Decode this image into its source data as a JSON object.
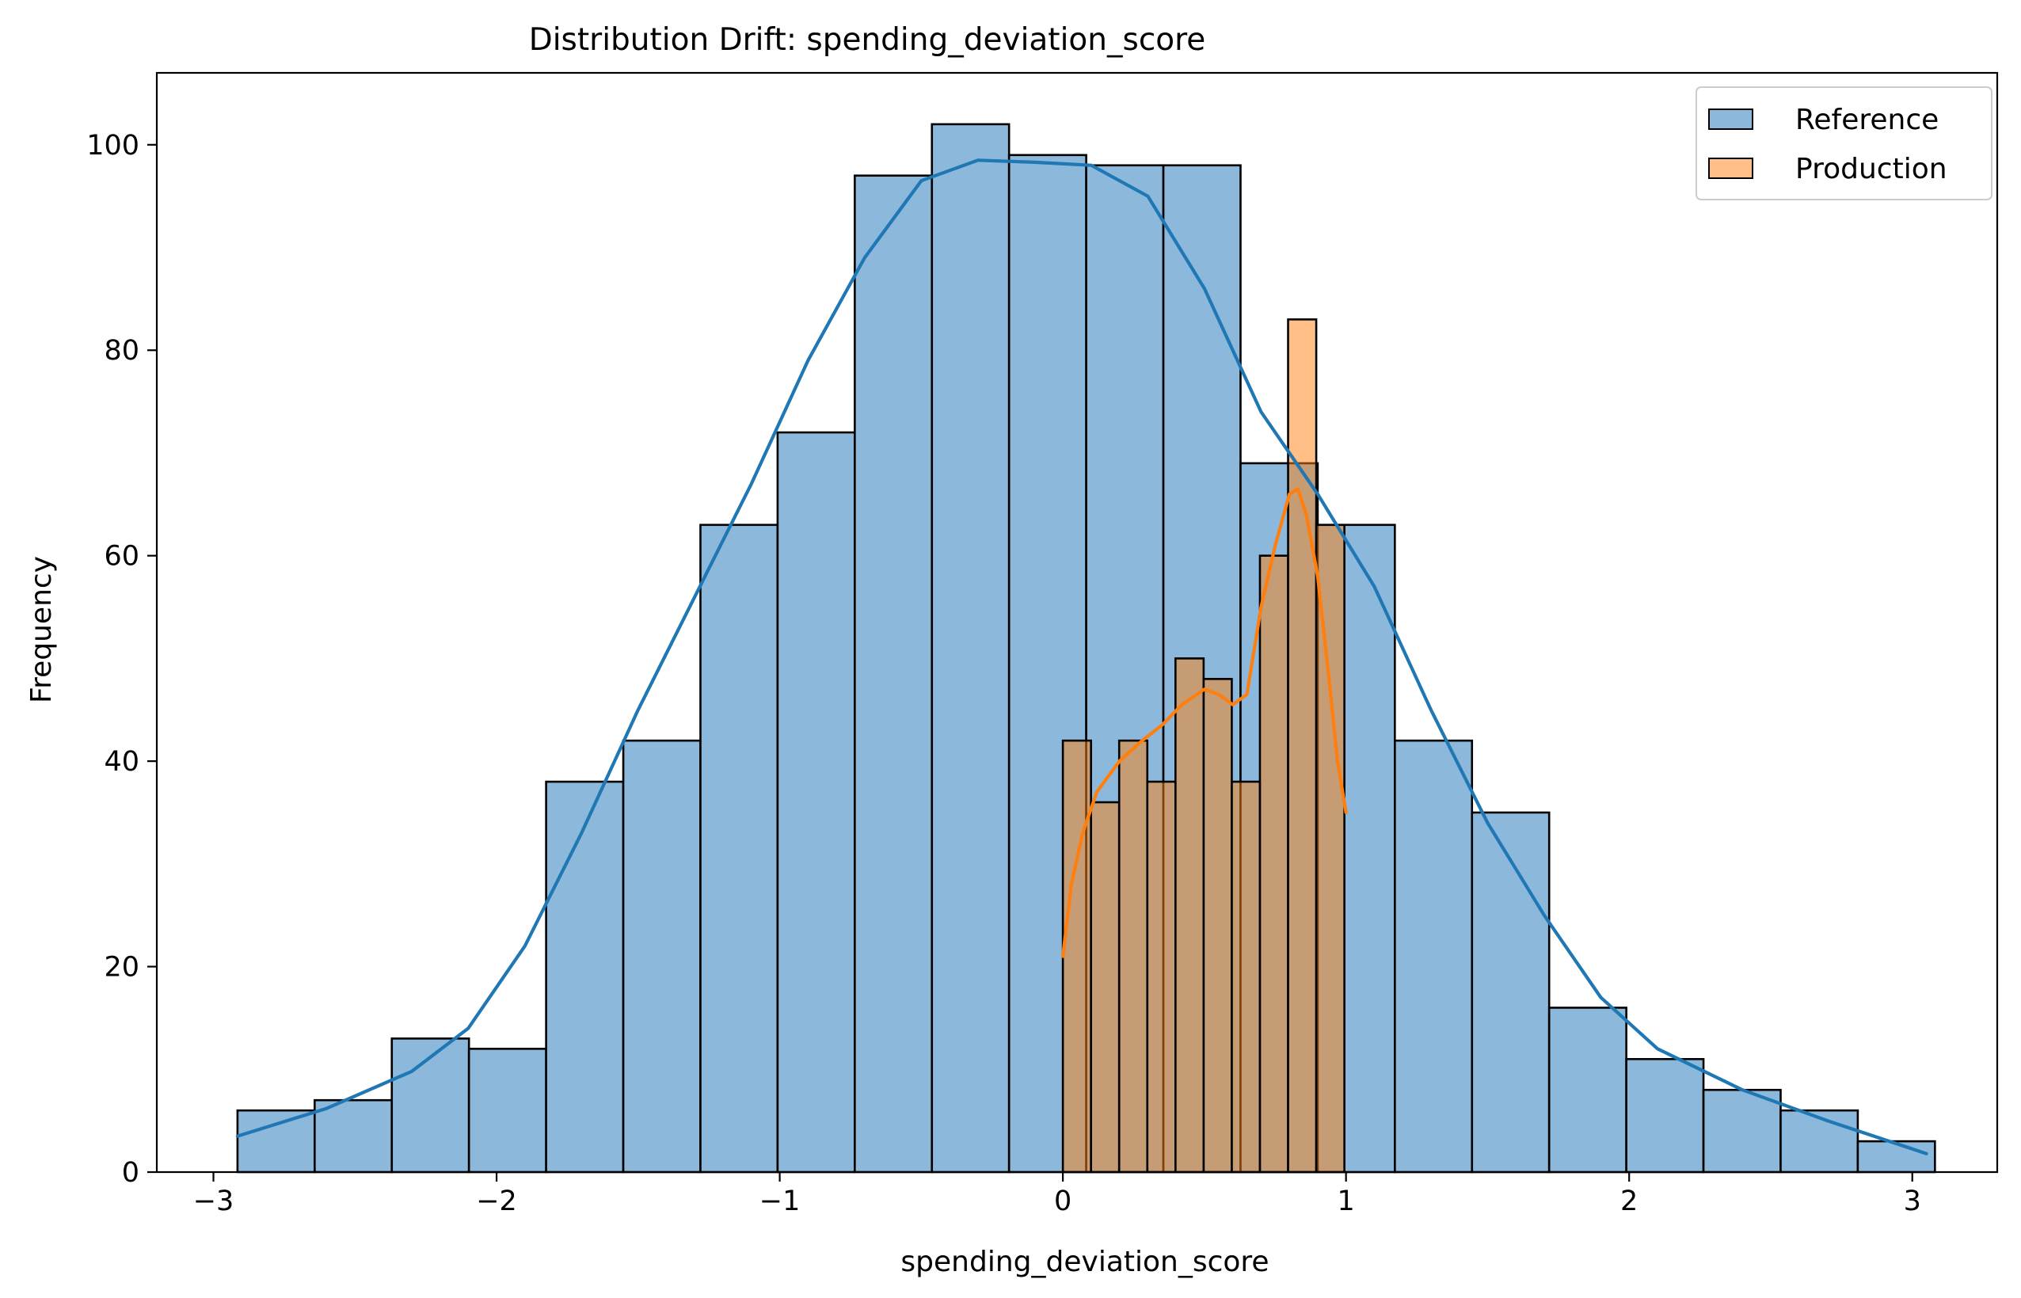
{
  "chart_data": {
    "type": "bar",
    "title": "Distribution Drift: spending_deviation_score",
    "xlabel": "spending_deviation_score",
    "ylabel": "Frequency",
    "xlim": [
      -3.2,
      3.3
    ],
    "ylim": [
      0,
      107
    ],
    "xticks": [
      -3,
      -2,
      -1,
      0,
      1,
      2,
      3
    ],
    "xtick_labels": [
      "−3",
      "−2",
      "−1",
      "0",
      "1",
      "2",
      "3"
    ],
    "yticks": [
      0,
      20,
      40,
      60,
      80,
      100
    ],
    "ytick_labels": [
      "0",
      "20",
      "40",
      "60",
      "80",
      "100"
    ],
    "grid": false,
    "legend": {
      "position": "upper-right",
      "entries": [
        "Reference",
        "Production"
      ]
    },
    "series": [
      {
        "name": "Reference",
        "color": "#1f77b4",
        "bins_start": -2.915,
        "bin_width": 0.2725,
        "counts": [
          6,
          7,
          13,
          12,
          38,
          42,
          63,
          72,
          97,
          102,
          99,
          98,
          98,
          69,
          63,
          42,
          35,
          16,
          11,
          8,
          6,
          3
        ],
        "kde": {
          "x": [
            -2.915,
            -2.6,
            -2.3,
            -2.1,
            -1.9,
            -1.7,
            -1.5,
            -1.3,
            -1.1,
            -0.9,
            -0.7,
            -0.5,
            -0.3,
            -0.1,
            0.1,
            0.3,
            0.5,
            0.7,
            0.9,
            1.1,
            1.3,
            1.5,
            1.7,
            1.9,
            2.1,
            2.4,
            2.7,
            3.05
          ],
          "y": [
            3.5,
            6.2,
            9.8,
            14,
            22,
            33,
            45,
            56,
            67,
            79,
            89,
            96.5,
            98.5,
            98.3,
            98,
            95,
            86,
            74,
            66,
            57,
            45,
            34,
            25,
            17,
            12,
            8,
            5,
            1.8
          ]
        }
      },
      {
        "name": "Production",
        "color": "#ff7f0e",
        "bins_start": 0.0,
        "bin_width": 0.09943,
        "counts": [
          42,
          36,
          42,
          38,
          50,
          48,
          38,
          60,
          83,
          63
        ],
        "kde": {
          "x": [
            0.0,
            0.03,
            0.07,
            0.12,
            0.2,
            0.28,
            0.35,
            0.42,
            0.5,
            0.55,
            0.6,
            0.65,
            0.7,
            0.75,
            0.8,
            0.83,
            0.86,
            0.9,
            0.94,
            0.97,
            1.0
          ],
          "y": [
            21,
            28,
            33,
            37,
            40,
            42,
            43.5,
            45.5,
            47,
            46.5,
            45.5,
            46.5,
            55,
            61,
            66,
            66.5,
            64,
            58,
            48,
            40,
            35
          ]
        }
      }
    ]
  }
}
